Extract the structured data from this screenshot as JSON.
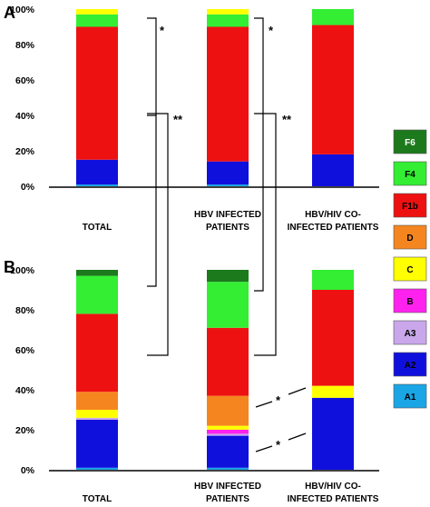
{
  "chart_data": [
    {
      "type": "bar",
      "stacked": true,
      "panel_label": "A",
      "categories": [
        "TOTAL",
        "HBV INFECTED\nPATIENTS",
        "HBV/HIV CO-\nINFECTED PATIENTS"
      ],
      "ylim": [
        0,
        100
      ],
      "yticks": [
        "0%",
        "20%",
        "40%",
        "60%",
        "80%",
        "100%"
      ],
      "series": [
        {
          "name": "A1",
          "values": [
            1,
            1,
            0
          ]
        },
        {
          "name": "A2",
          "values": [
            14,
            13,
            18
          ]
        },
        {
          "name": "A3",
          "values": [
            0,
            0,
            0
          ]
        },
        {
          "name": "B",
          "values": [
            0,
            0,
            0
          ]
        },
        {
          "name": "C",
          "values": [
            0,
            0,
            0
          ]
        },
        {
          "name": "D",
          "values": [
            0,
            0,
            0
          ]
        },
        {
          "name": "F1b",
          "values": [
            75,
            76,
            73
          ]
        },
        {
          "name": "F4",
          "values": [
            7,
            7,
            9
          ]
        },
        {
          "name": "F6",
          "values": [
            0,
            0,
            0
          ]
        },
        {
          "name": "C_top",
          "values": [
            3,
            3,
            0
          ]
        }
      ],
      "annotations": [
        "*",
        "**",
        "*",
        "**"
      ]
    },
    {
      "type": "bar",
      "stacked": true,
      "panel_label": "B",
      "categories": [
        "TOTAL",
        "HBV INFECTED\nPATIENTS",
        "HBV/HIV CO-\nINFECTED PATIENTS"
      ],
      "ylim": [
        0,
        100
      ],
      "yticks": [
        "0%",
        "20%",
        "40%",
        "60%",
        "80%",
        "100%"
      ],
      "series": [
        {
          "name": "A1",
          "values": [
            1,
            1,
            0
          ]
        },
        {
          "name": "A2",
          "values": [
            24,
            16,
            36
          ]
        },
        {
          "name": "A3",
          "values": [
            1,
            1,
            0
          ]
        },
        {
          "name": "B",
          "values": [
            0,
            2,
            0
          ]
        },
        {
          "name": "C",
          "values": [
            4,
            2,
            6
          ]
        },
        {
          "name": "D",
          "values": [
            9,
            15,
            0
          ]
        },
        {
          "name": "F1b",
          "values": [
            39,
            34,
            48
          ]
        },
        {
          "name": "F4",
          "values": [
            19,
            23,
            10
          ]
        },
        {
          "name": "F6",
          "values": [
            3,
            6,
            0
          ]
        }
      ],
      "annotations": [
        "*",
        "*"
      ]
    }
  ],
  "legend": {
    "items": [
      {
        "name": "F6",
        "color": "#1c7a1c",
        "text_color": "#ffffff"
      },
      {
        "name": "F4",
        "color": "#33ee33",
        "text_color": "#000000"
      },
      {
        "name": "F1b",
        "color": "#ee1111",
        "text_color": "#000000"
      },
      {
        "name": "D",
        "color": "#f5861f",
        "text_color": "#000000"
      },
      {
        "name": "C",
        "color": "#ffff00",
        "text_color": "#000000"
      },
      {
        "name": "B",
        "color": "#ff22ee",
        "text_color": "#000000"
      },
      {
        "name": "A3",
        "color": "#c9a7ea",
        "text_color": "#000000"
      },
      {
        "name": "A2",
        "color": "#1010dd",
        "text_color": "#000000"
      },
      {
        "name": "A1",
        "color": "#1aa5e6",
        "text_color": "#000000"
      }
    ]
  },
  "colors": {
    "A1": "#1aa5e6",
    "A2": "#1010dd",
    "A3": "#c9a7ea",
    "B": "#ff22ee",
    "C": "#ffff00",
    "D": "#f5861f",
    "F1b": "#ee1111",
    "F4": "#33ee33",
    "F6": "#1c7a1c",
    "C_top": "#ffff00"
  }
}
